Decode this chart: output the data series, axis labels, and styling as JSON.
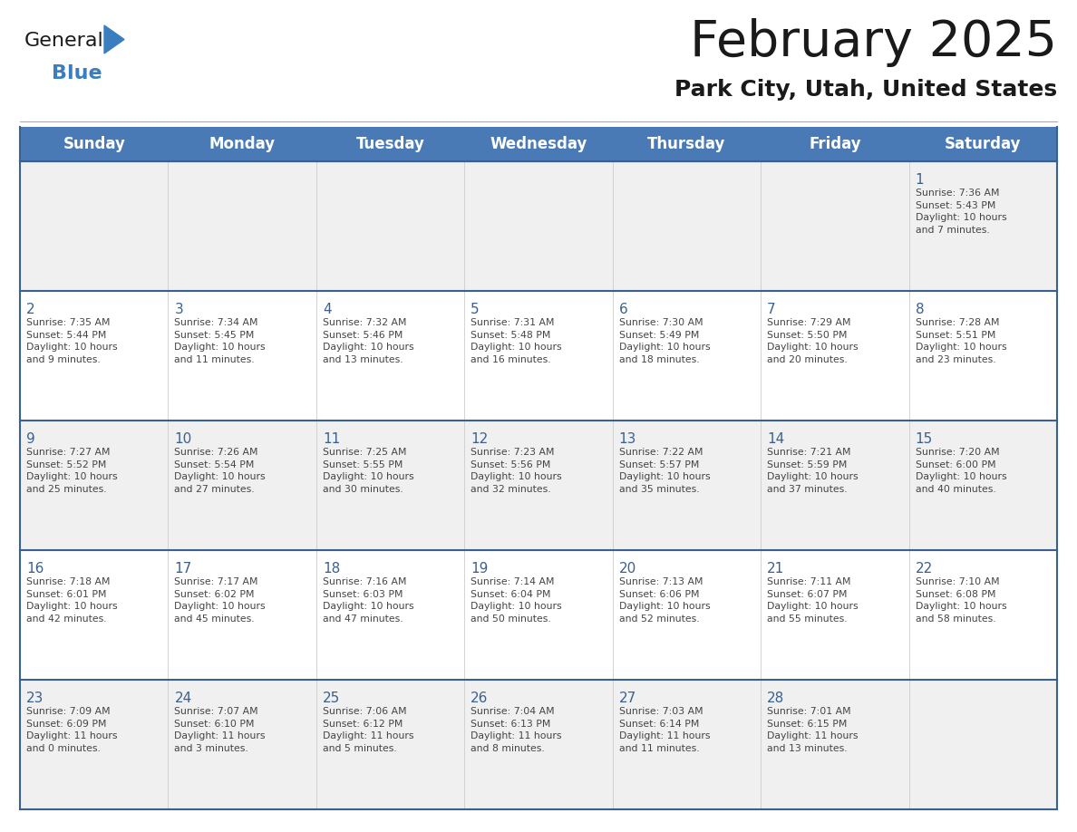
{
  "title": "February 2025",
  "subtitle": "Park City, Utah, United States",
  "days_of_week": [
    "Sunday",
    "Monday",
    "Tuesday",
    "Wednesday",
    "Thursday",
    "Friday",
    "Saturday"
  ],
  "header_bg": "#4a7ab5",
  "header_text": "#ffffff",
  "cell_bg_light": "#f0f0f0",
  "cell_bg_white": "#ffffff",
  "border_color": "#3a6090",
  "day_num_color": "#3a6090",
  "info_text_color": "#444444",
  "title_color": "#1a1a1a",
  "subtitle_color": "#1a1a1a",
  "logo_general_color": "#1a1a1a",
  "logo_blue_color": "#3a7ebf",
  "weeks": [
    {
      "days": [
        {
          "date": "",
          "info": ""
        },
        {
          "date": "",
          "info": ""
        },
        {
          "date": "",
          "info": ""
        },
        {
          "date": "",
          "info": ""
        },
        {
          "date": "",
          "info": ""
        },
        {
          "date": "",
          "info": ""
        },
        {
          "date": "1",
          "info": "Sunrise: 7:36 AM\nSunset: 5:43 PM\nDaylight: 10 hours\nand 7 minutes."
        }
      ]
    },
    {
      "days": [
        {
          "date": "2",
          "info": "Sunrise: 7:35 AM\nSunset: 5:44 PM\nDaylight: 10 hours\nand 9 minutes."
        },
        {
          "date": "3",
          "info": "Sunrise: 7:34 AM\nSunset: 5:45 PM\nDaylight: 10 hours\nand 11 minutes."
        },
        {
          "date": "4",
          "info": "Sunrise: 7:32 AM\nSunset: 5:46 PM\nDaylight: 10 hours\nand 13 minutes."
        },
        {
          "date": "5",
          "info": "Sunrise: 7:31 AM\nSunset: 5:48 PM\nDaylight: 10 hours\nand 16 minutes."
        },
        {
          "date": "6",
          "info": "Sunrise: 7:30 AM\nSunset: 5:49 PM\nDaylight: 10 hours\nand 18 minutes."
        },
        {
          "date": "7",
          "info": "Sunrise: 7:29 AM\nSunset: 5:50 PM\nDaylight: 10 hours\nand 20 minutes."
        },
        {
          "date": "8",
          "info": "Sunrise: 7:28 AM\nSunset: 5:51 PM\nDaylight: 10 hours\nand 23 minutes."
        }
      ]
    },
    {
      "days": [
        {
          "date": "9",
          "info": "Sunrise: 7:27 AM\nSunset: 5:52 PM\nDaylight: 10 hours\nand 25 minutes."
        },
        {
          "date": "10",
          "info": "Sunrise: 7:26 AM\nSunset: 5:54 PM\nDaylight: 10 hours\nand 27 minutes."
        },
        {
          "date": "11",
          "info": "Sunrise: 7:25 AM\nSunset: 5:55 PM\nDaylight: 10 hours\nand 30 minutes."
        },
        {
          "date": "12",
          "info": "Sunrise: 7:23 AM\nSunset: 5:56 PM\nDaylight: 10 hours\nand 32 minutes."
        },
        {
          "date": "13",
          "info": "Sunrise: 7:22 AM\nSunset: 5:57 PM\nDaylight: 10 hours\nand 35 minutes."
        },
        {
          "date": "14",
          "info": "Sunrise: 7:21 AM\nSunset: 5:59 PM\nDaylight: 10 hours\nand 37 minutes."
        },
        {
          "date": "15",
          "info": "Sunrise: 7:20 AM\nSunset: 6:00 PM\nDaylight: 10 hours\nand 40 minutes."
        }
      ]
    },
    {
      "days": [
        {
          "date": "16",
          "info": "Sunrise: 7:18 AM\nSunset: 6:01 PM\nDaylight: 10 hours\nand 42 minutes."
        },
        {
          "date": "17",
          "info": "Sunrise: 7:17 AM\nSunset: 6:02 PM\nDaylight: 10 hours\nand 45 minutes."
        },
        {
          "date": "18",
          "info": "Sunrise: 7:16 AM\nSunset: 6:03 PM\nDaylight: 10 hours\nand 47 minutes."
        },
        {
          "date": "19",
          "info": "Sunrise: 7:14 AM\nSunset: 6:04 PM\nDaylight: 10 hours\nand 50 minutes."
        },
        {
          "date": "20",
          "info": "Sunrise: 7:13 AM\nSunset: 6:06 PM\nDaylight: 10 hours\nand 52 minutes."
        },
        {
          "date": "21",
          "info": "Sunrise: 7:11 AM\nSunset: 6:07 PM\nDaylight: 10 hours\nand 55 minutes."
        },
        {
          "date": "22",
          "info": "Sunrise: 7:10 AM\nSunset: 6:08 PM\nDaylight: 10 hours\nand 58 minutes."
        }
      ]
    },
    {
      "days": [
        {
          "date": "23",
          "info": "Sunrise: 7:09 AM\nSunset: 6:09 PM\nDaylight: 11 hours\nand 0 minutes."
        },
        {
          "date": "24",
          "info": "Sunrise: 7:07 AM\nSunset: 6:10 PM\nDaylight: 11 hours\nand 3 minutes."
        },
        {
          "date": "25",
          "info": "Sunrise: 7:06 AM\nSunset: 6:12 PM\nDaylight: 11 hours\nand 5 minutes."
        },
        {
          "date": "26",
          "info": "Sunrise: 7:04 AM\nSunset: 6:13 PM\nDaylight: 11 hours\nand 8 minutes."
        },
        {
          "date": "27",
          "info": "Sunrise: 7:03 AM\nSunset: 6:14 PM\nDaylight: 11 hours\nand 11 minutes."
        },
        {
          "date": "28",
          "info": "Sunrise: 7:01 AM\nSunset: 6:15 PM\nDaylight: 11 hours\nand 13 minutes."
        },
        {
          "date": "",
          "info": ""
        }
      ]
    }
  ]
}
